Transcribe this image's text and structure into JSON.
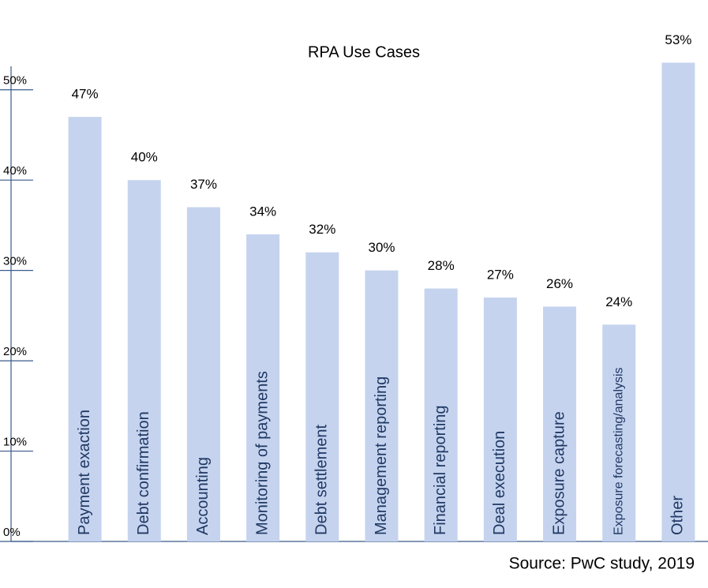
{
  "chart_data": {
    "type": "bar",
    "title": "RPA Use Cases",
    "categories": [
      "Payment exaction",
      "Debt confirmation",
      "Accounting",
      "Monitoring of payments",
      "Debt settlement",
      "Management reporting",
      "Financial reporting",
      "Deal execution",
      "Exposure capture",
      "Exposure forecasting/analysis",
      "Other"
    ],
    "values": [
      47,
      40,
      37,
      34,
      32,
      30,
      28,
      27,
      26,
      24,
      53
    ],
    "value_labels": [
      "47%",
      "40%",
      "37%",
      "34%",
      "32%",
      "30%",
      "28%",
      "27%",
      "26%",
      "24%",
      "53%"
    ],
    "color": "#c5d3ee",
    "ylim": [
      0,
      52.6
    ],
    "yticks": [
      {
        "value": 0,
        "label": "0%"
      },
      {
        "value": 10,
        "label": "10%"
      },
      {
        "value": 20,
        "label": "20%"
      },
      {
        "value": 30,
        "label": "30%"
      },
      {
        "value": 40,
        "label": "40%"
      },
      {
        "value": 50,
        "label": "50%"
      }
    ],
    "source": "Source: PwC study, 2019"
  }
}
